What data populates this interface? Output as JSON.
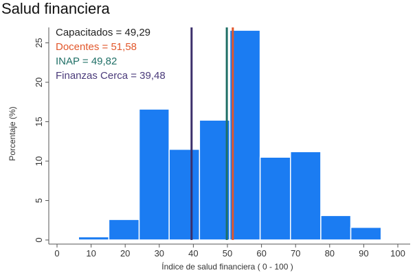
{
  "chart_data": {
    "type": "bar",
    "title": "Salud financiera",
    "xlabel": "Índice de salud financiera ( 0 - 100 )",
    "ylabel": "Porcentaje (%)",
    "xlim": [
      0,
      100
    ],
    "ylim": [
      0,
      28
    ],
    "x_ticks": [
      "0",
      "10",
      "20",
      "30",
      "40",
      "50",
      "60",
      "70",
      "80",
      "90",
      "100"
    ],
    "y_ticks": [
      "0",
      "5",
      "10",
      "15",
      "20",
      "25"
    ],
    "bins": [
      {
        "start": 6.3,
        "end": 15.2,
        "value": 0.4
      },
      {
        "start": 15.2,
        "end": 24.1,
        "value": 2.6
      },
      {
        "start": 24.1,
        "end": 32.9,
        "value": 16.6
      },
      {
        "start": 32.9,
        "end": 41.8,
        "value": 11.5
      },
      {
        "start": 41.8,
        "end": 50.7,
        "value": 15.2
      },
      {
        "start": 50.7,
        "end": 59.6,
        "value": 26.6
      },
      {
        "start": 59.6,
        "end": 68.5,
        "value": 10.5
      },
      {
        "start": 68.5,
        "end": 77.4,
        "value": 11.2
      },
      {
        "start": 77.4,
        "end": 86.2,
        "value": 3.1
      },
      {
        "start": 86.2,
        "end": 95.1,
        "value": 1.6
      }
    ],
    "bar_color": "#1b7cf2",
    "vlines": [
      {
        "name": "Finanzas Cerca",
        "x": 39.48,
        "color": "#3b2f6b"
      },
      {
        "name": "INAP",
        "x": 49.82,
        "color": "#1f6f66"
      },
      {
        "name": "Docentes",
        "x": 51.58,
        "color": "#e2572b"
      }
    ],
    "legend": [
      {
        "text": "Capacitados = 49,29",
        "color": "#222222"
      },
      {
        "text": "Docentes = 51,58",
        "color": "#e2572b"
      },
      {
        "text": "INAP = 49,82",
        "color": "#1f6f66"
      },
      {
        "text": "Finanzas Cerca = 39,48",
        "color": "#4a3a7a"
      }
    ],
    "legend_position": "top-left",
    "grid": false
  }
}
